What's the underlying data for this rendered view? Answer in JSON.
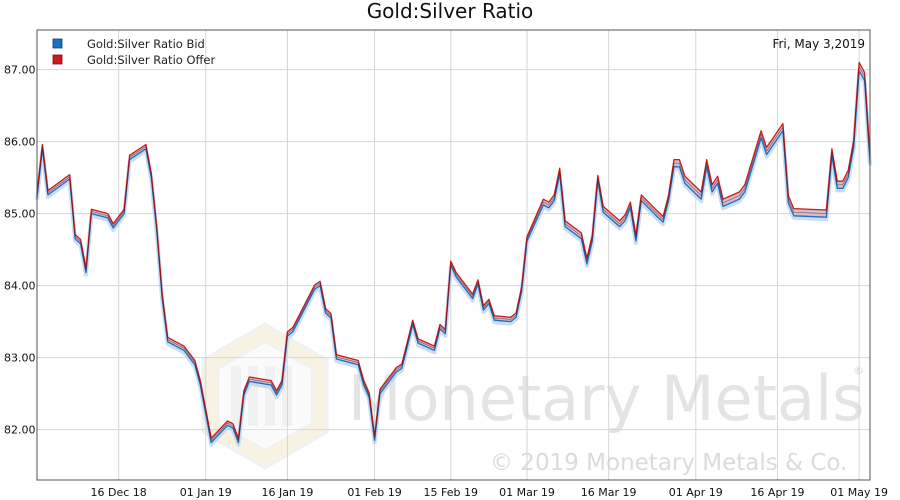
{
  "colors": {
    "bid": "#1f6fc0",
    "offer": "#cc1a1a",
    "fill": "#d9bcc8",
    "grid": "#d6d6d6",
    "axis": "#555555"
  },
  "watermark": {
    "brand": "Monetary Metals",
    "copyright": "© 2019 Monetary Metals & Co.",
    "registered": "®"
  },
  "chart_data": {
    "type": "line",
    "title": "Gold:Silver Ratio",
    "date_label": "Fri, May 3,2019",
    "legend_position": "top-left",
    "grid": true,
    "xlabel": "",
    "ylabel": "",
    "x_ticks": [
      {
        "label": "16 Dec 18",
        "date": "2018-12-16"
      },
      {
        "label": "01 Jan 19",
        "date": "2019-01-01"
      },
      {
        "label": "16 Jan 19",
        "date": "2019-01-16"
      },
      {
        "label": "01 Feb 19",
        "date": "2019-02-01"
      },
      {
        "label": "15 Feb 19",
        "date": "2019-02-15"
      },
      {
        "label": "01 Mar 19",
        "date": "2019-03-01"
      },
      {
        "label": "16 Mar 19",
        "date": "2019-03-16"
      },
      {
        "label": "01 Apr 19",
        "date": "2019-04-01"
      },
      {
        "label": "16 Apr 19",
        "date": "2019-04-16"
      },
      {
        "label": "01 May 19",
        "date": "2019-05-01"
      }
    ],
    "xlim": [
      "2018-12-01",
      "2019-05-03"
    ],
    "y_ticks": [
      {
        "label": "82.00",
        "value": 82
      },
      {
        "label": "83.00",
        "value": 83
      },
      {
        "label": "84.00",
        "value": 84
      },
      {
        "label": "85.00",
        "value": 85
      },
      {
        "label": "86.00",
        "value": 86
      },
      {
        "label": "87.00",
        "value": 87
      }
    ],
    "ylim": [
      81.3,
      87.55
    ],
    "series": [
      {
        "name": "Gold:Silver Ratio Bid",
        "points": [
          [
            "2018-12-01",
            85.22
          ],
          [
            "2018-12-02",
            85.9
          ],
          [
            "2018-12-03",
            85.26
          ],
          [
            "2018-12-07",
            85.48
          ],
          [
            "2018-12-08",
            84.65
          ],
          [
            "2018-12-09",
            84.58
          ],
          [
            "2018-12-10",
            84.18
          ],
          [
            "2018-12-11",
            85.0
          ],
          [
            "2018-12-14",
            84.94
          ],
          [
            "2018-12-15",
            84.8
          ],
          [
            "2018-12-17",
            85.0
          ],
          [
            "2018-12-18",
            85.75
          ],
          [
            "2018-12-21",
            85.9
          ],
          [
            "2018-12-22",
            85.5
          ],
          [
            "2018-12-23",
            84.75
          ],
          [
            "2018-12-24",
            83.82
          ],
          [
            "2018-12-25",
            83.22
          ],
          [
            "2018-12-28",
            83.1
          ],
          [
            "2018-12-30",
            82.9
          ],
          [
            "2018-12-31",
            82.62
          ],
          [
            "2019-01-02",
            81.82
          ],
          [
            "2019-01-05",
            82.06
          ],
          [
            "2019-01-06",
            82.02
          ],
          [
            "2019-01-07",
            81.82
          ],
          [
            "2019-01-08",
            82.48
          ],
          [
            "2019-01-09",
            82.67
          ],
          [
            "2019-01-13",
            82.62
          ],
          [
            "2019-01-14",
            82.48
          ],
          [
            "2019-01-15",
            82.62
          ],
          [
            "2019-01-16",
            83.3
          ],
          [
            "2019-01-17",
            83.36
          ],
          [
            "2019-01-21",
            83.95
          ],
          [
            "2019-01-22",
            84.0
          ],
          [
            "2019-01-23",
            83.62
          ],
          [
            "2019-01-24",
            83.55
          ],
          [
            "2019-01-25",
            82.98
          ],
          [
            "2019-01-29",
            82.9
          ],
          [
            "2019-01-30",
            82.62
          ],
          [
            "2019-01-31",
            82.45
          ],
          [
            "2019-02-01",
            81.85
          ],
          [
            "2019-02-02",
            82.5
          ],
          [
            "2019-02-05",
            82.8
          ],
          [
            "2019-02-06",
            82.85
          ],
          [
            "2019-02-07",
            83.15
          ],
          [
            "2019-02-08",
            83.46
          ],
          [
            "2019-02-09",
            83.2
          ],
          [
            "2019-02-12",
            83.1
          ],
          [
            "2019-02-13",
            83.4
          ],
          [
            "2019-02-14",
            83.33
          ],
          [
            "2019-02-15",
            84.28
          ],
          [
            "2019-02-16",
            84.12
          ],
          [
            "2019-02-19",
            83.82
          ],
          [
            "2019-02-20",
            84.02
          ],
          [
            "2019-02-21",
            83.66
          ],
          [
            "2019-02-22",
            83.75
          ],
          [
            "2019-02-23",
            83.52
          ],
          [
            "2019-02-26",
            83.5
          ],
          [
            "2019-02-27",
            83.56
          ],
          [
            "2019-02-28",
            83.92
          ],
          [
            "2019-03-01",
            84.62
          ],
          [
            "2019-03-04",
            85.12
          ],
          [
            "2019-03-05",
            85.08
          ],
          [
            "2019-03-06",
            85.18
          ],
          [
            "2019-03-07",
            85.55
          ],
          [
            "2019-03-08",
            84.82
          ],
          [
            "2019-03-11",
            84.65
          ],
          [
            "2019-03-12",
            84.3
          ],
          [
            "2019-03-13",
            84.62
          ],
          [
            "2019-03-14",
            85.45
          ],
          [
            "2019-03-15",
            85.02
          ],
          [
            "2019-03-18",
            84.82
          ],
          [
            "2019-03-19",
            84.9
          ],
          [
            "2019-03-20",
            85.08
          ],
          [
            "2019-03-21",
            84.62
          ],
          [
            "2019-03-22",
            85.18
          ],
          [
            "2019-03-25",
            84.95
          ],
          [
            "2019-03-26",
            84.88
          ],
          [
            "2019-03-27",
            85.18
          ],
          [
            "2019-03-28",
            85.65
          ],
          [
            "2019-03-29",
            85.65
          ],
          [
            "2019-03-30",
            85.42
          ],
          [
            "2019-04-02",
            85.2
          ],
          [
            "2019-04-03",
            85.65
          ],
          [
            "2019-04-04",
            85.3
          ],
          [
            "2019-04-05",
            85.42
          ],
          [
            "2019-04-06",
            85.1
          ],
          [
            "2019-04-09",
            85.2
          ],
          [
            "2019-04-10",
            85.3
          ],
          [
            "2019-04-13",
            86.05
          ],
          [
            "2019-04-14",
            85.82
          ],
          [
            "2019-04-17",
            86.15
          ],
          [
            "2019-04-18",
            85.15
          ],
          [
            "2019-04-19",
            84.97
          ],
          [
            "2019-04-25",
            84.95
          ],
          [
            "2019-04-26",
            85.8
          ],
          [
            "2019-04-27",
            85.35
          ],
          [
            "2019-04-28",
            85.35
          ],
          [
            "2019-04-29",
            85.5
          ],
          [
            "2019-04-30",
            85.92
          ],
          [
            "2019-05-01",
            86.98
          ],
          [
            "2019-05-02",
            86.85
          ],
          [
            "2019-05-03",
            85.7
          ]
        ]
      },
      {
        "name": "Gold:Silver Ratio Offer",
        "points": [
          [
            "2018-12-01",
            85.28
          ],
          [
            "2018-12-02",
            85.96
          ],
          [
            "2018-12-03",
            85.32
          ],
          [
            "2018-12-07",
            85.54
          ],
          [
            "2018-12-08",
            84.71
          ],
          [
            "2018-12-09",
            84.64
          ],
          [
            "2018-12-10",
            84.24
          ],
          [
            "2018-12-11",
            85.06
          ],
          [
            "2018-12-14",
            85.0
          ],
          [
            "2018-12-15",
            84.86
          ],
          [
            "2018-12-17",
            85.06
          ],
          [
            "2018-12-18",
            85.81
          ],
          [
            "2018-12-21",
            85.96
          ],
          [
            "2018-12-22",
            85.56
          ],
          [
            "2018-12-23",
            84.81
          ],
          [
            "2018-12-24",
            83.88
          ],
          [
            "2018-12-25",
            83.28
          ],
          [
            "2018-12-28",
            83.16
          ],
          [
            "2018-12-30",
            82.96
          ],
          [
            "2018-12-31",
            82.68
          ],
          [
            "2019-01-02",
            81.88
          ],
          [
            "2019-01-05",
            82.12
          ],
          [
            "2019-01-06",
            82.08
          ],
          [
            "2019-01-07",
            81.88
          ],
          [
            "2019-01-08",
            82.54
          ],
          [
            "2019-01-09",
            82.73
          ],
          [
            "2019-01-13",
            82.68
          ],
          [
            "2019-01-14",
            82.54
          ],
          [
            "2019-01-15",
            82.68
          ],
          [
            "2019-01-16",
            83.36
          ],
          [
            "2019-01-17",
            83.42
          ],
          [
            "2019-01-21",
            84.01
          ],
          [
            "2019-01-22",
            84.06
          ],
          [
            "2019-01-23",
            83.68
          ],
          [
            "2019-01-24",
            83.61
          ],
          [
            "2019-01-25",
            83.04
          ],
          [
            "2019-01-29",
            82.96
          ],
          [
            "2019-01-30",
            82.68
          ],
          [
            "2019-01-31",
            82.51
          ],
          [
            "2019-02-01",
            81.91
          ],
          [
            "2019-02-02",
            82.56
          ],
          [
            "2019-02-05",
            82.86
          ],
          [
            "2019-02-06",
            82.91
          ],
          [
            "2019-02-07",
            83.21
          ],
          [
            "2019-02-08",
            83.52
          ],
          [
            "2019-02-09",
            83.26
          ],
          [
            "2019-02-12",
            83.16
          ],
          [
            "2019-02-13",
            83.46
          ],
          [
            "2019-02-14",
            83.39
          ],
          [
            "2019-02-15",
            84.34
          ],
          [
            "2019-02-16",
            84.18
          ],
          [
            "2019-02-19",
            83.88
          ],
          [
            "2019-02-20",
            84.08
          ],
          [
            "2019-02-21",
            83.72
          ],
          [
            "2019-02-22",
            83.81
          ],
          [
            "2019-02-23",
            83.58
          ],
          [
            "2019-02-26",
            83.56
          ],
          [
            "2019-02-27",
            83.62
          ],
          [
            "2019-02-28",
            83.98
          ],
          [
            "2019-03-01",
            84.68
          ],
          [
            "2019-03-04",
            85.2
          ],
          [
            "2019-03-05",
            85.16
          ],
          [
            "2019-03-06",
            85.26
          ],
          [
            "2019-03-07",
            85.63
          ],
          [
            "2019-03-08",
            84.9
          ],
          [
            "2019-03-11",
            84.73
          ],
          [
            "2019-03-12",
            84.38
          ],
          [
            "2019-03-13",
            84.7
          ],
          [
            "2019-03-14",
            85.53
          ],
          [
            "2019-03-15",
            85.1
          ],
          [
            "2019-03-18",
            84.9
          ],
          [
            "2019-03-19",
            84.98
          ],
          [
            "2019-03-20",
            85.16
          ],
          [
            "2019-03-21",
            84.7
          ],
          [
            "2019-03-22",
            85.26
          ],
          [
            "2019-03-25",
            85.03
          ],
          [
            "2019-03-26",
            84.96
          ],
          [
            "2019-03-27",
            85.26
          ],
          [
            "2019-03-28",
            85.75
          ],
          [
            "2019-03-29",
            85.75
          ],
          [
            "2019-03-30",
            85.52
          ],
          [
            "2019-04-02",
            85.3
          ],
          [
            "2019-04-03",
            85.75
          ],
          [
            "2019-04-04",
            85.4
          ],
          [
            "2019-04-05",
            85.52
          ],
          [
            "2019-04-06",
            85.2
          ],
          [
            "2019-04-09",
            85.3
          ],
          [
            "2019-04-10",
            85.4
          ],
          [
            "2019-04-13",
            86.15
          ],
          [
            "2019-04-14",
            85.92
          ],
          [
            "2019-04-17",
            86.25
          ],
          [
            "2019-04-18",
            85.25
          ],
          [
            "2019-04-19",
            85.07
          ],
          [
            "2019-04-25",
            85.05
          ],
          [
            "2019-04-26",
            85.9
          ],
          [
            "2019-04-27",
            85.45
          ],
          [
            "2019-04-28",
            85.45
          ],
          [
            "2019-04-29",
            85.6
          ],
          [
            "2019-04-30",
            86.02
          ],
          [
            "2019-05-01",
            87.1
          ],
          [
            "2019-05-02",
            86.96
          ],
          [
            "2019-05-03",
            85.8
          ]
        ]
      }
    ]
  }
}
